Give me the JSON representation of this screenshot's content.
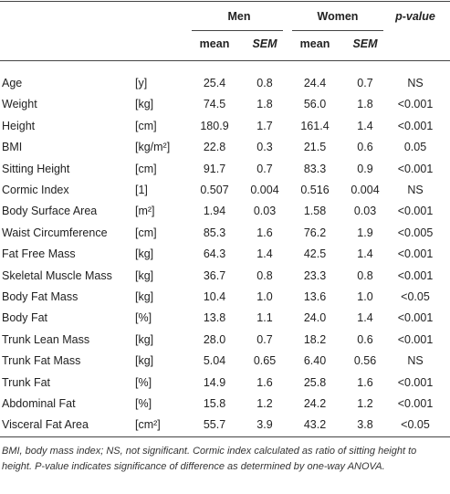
{
  "table": {
    "header": {
      "groups": [
        "Men",
        "Women",
        "p-value"
      ],
      "sub": [
        "mean",
        "SEM",
        "mean",
        "SEM"
      ]
    },
    "rows": [
      [
        "Age",
        "[y]",
        "25.4",
        "0.8",
        "24.4",
        "0.7",
        "NS"
      ],
      [
        "Weight",
        "[kg]",
        "74.5",
        "1.8",
        "56.0",
        "1.8",
        "<0.001"
      ],
      [
        "Height",
        "[cm]",
        "180.9",
        "1.7",
        "161.4",
        "1.4",
        "<0.001"
      ],
      [
        "BMI",
        "[kg/m²]",
        "22.8",
        "0.3",
        "21.5",
        "0.6",
        "0.05"
      ],
      [
        "Sitting Height",
        "[cm]",
        "91.7",
        "0.7",
        "83.3",
        "0.9",
        "<0.001"
      ],
      [
        "Cormic Index",
        "[1]",
        "0.507",
        "0.004",
        "0.516",
        "0.004",
        "NS"
      ],
      [
        "Body Surface Area",
        "[m²]",
        "1.94",
        "0.03",
        "1.58",
        "0.03",
        "<0.001"
      ],
      [
        "Waist Circumference",
        "[cm]",
        "85.3",
        "1.6",
        "76.2",
        "1.9",
        "<0.005"
      ],
      [
        "Fat Free Mass",
        "[kg]",
        "64.3",
        "1.4",
        "42.5",
        "1.4",
        "<0.001"
      ],
      [
        "Skeletal Muscle Mass",
        "[kg]",
        "36.7",
        "0.8",
        "23.3",
        "0.8",
        "<0.001"
      ],
      [
        "Body Fat Mass",
        "[kg]",
        "10.4",
        "1.0",
        "13.6",
        "1.0",
        "<0.05"
      ],
      [
        "Body Fat",
        "[%]",
        "13.8",
        "1.1",
        "24.0",
        "1.4",
        "<0.001"
      ],
      [
        "Trunk Lean Mass",
        "[kg]",
        "28.0",
        "0.7",
        "18.2",
        "0.6",
        "<0.001"
      ],
      [
        "Trunk Fat Mass",
        "[kg]",
        "5.04",
        "0.65",
        "6.40",
        "0.56",
        "NS"
      ],
      [
        "Trunk Fat",
        "[%]",
        "14.9",
        "1.6",
        "25.8",
        "1.6",
        "<0.001"
      ],
      [
        "Abdominal Fat",
        "[%]",
        "15.8",
        "1.2",
        "24.2",
        "1.2",
        "<0.001"
      ],
      [
        "Visceral Fat Area",
        "[cm²]",
        "55.7",
        "3.9",
        "43.2",
        "3.8",
        "<0.05"
      ]
    ],
    "footnote": "BMI, body mass index; NS, not significant. Cormic index calculated as ratio of sitting height to height. P-value indicates significance of difference as determined by one-way ANOVA."
  }
}
